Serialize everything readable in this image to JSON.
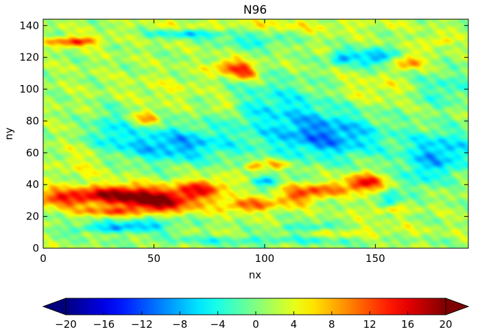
{
  "chart_data": {
    "type": "heatmap",
    "title": "N96",
    "xlabel": "nx",
    "ylabel": "ny",
    "xlim": [
      0,
      192
    ],
    "ylim": [
      0,
      144
    ],
    "x_ticks": [
      0,
      50,
      100,
      150
    ],
    "y_ticks": [
      0,
      20,
      40,
      60,
      80,
      100,
      120,
      140
    ],
    "colormap": "jet",
    "colorbar": {
      "orientation": "horizontal",
      "location": "bottom",
      "extend": "both",
      "vmin": -20,
      "vmax": 20,
      "ticks": [
        -20,
        -16,
        -12,
        -8,
        -4,
        0,
        4,
        8,
        12,
        16,
        20
      ]
    },
    "grid": false,
    "features": [
      {
        "kind": "warm-core",
        "x": 52,
        "y": 30,
        "sx": 13,
        "sy": 5,
        "amp": 18
      },
      {
        "kind": "warm-band",
        "x": 12,
        "y": 32,
        "sx": 14,
        "sy": 4,
        "amp": 13
      },
      {
        "kind": "warm-band",
        "x": 72,
        "y": 38,
        "sx": 8,
        "sy": 4,
        "amp": 11
      },
      {
        "kind": "warm-band",
        "x": 35,
        "y": 35,
        "sx": 10,
        "sy": 4,
        "amp": 10
      },
      {
        "kind": "warm-band",
        "x": 93,
        "y": 27,
        "sx": 9,
        "sy": 3,
        "amp": 10
      },
      {
        "kind": "warm-band",
        "x": 115,
        "y": 33,
        "sx": 7,
        "sy": 4,
        "amp": 9
      },
      {
        "kind": "warm-core",
        "x": 145,
        "y": 41,
        "sx": 6,
        "sy": 4,
        "amp": 14
      },
      {
        "kind": "warm-band",
        "x": 127,
        "y": 37,
        "sx": 8,
        "sy": 3,
        "amp": 8
      },
      {
        "kind": "warm-band",
        "x": 30,
        "y": 23,
        "sx": 12,
        "sy": 2,
        "amp": 8
      },
      {
        "kind": "warm-patch",
        "x": 14,
        "y": 130,
        "sx": 8,
        "sy": 2,
        "amp": 13
      },
      {
        "kind": "warm-patch",
        "x": 85,
        "y": 114,
        "sx": 6,
        "sy": 3,
        "amp": 11
      },
      {
        "kind": "warm-patch",
        "x": 91,
        "y": 110,
        "sx": 4,
        "sy": 3,
        "amp": 10
      },
      {
        "kind": "warm-patch",
        "x": 165,
        "y": 117,
        "sx": 5,
        "sy": 3,
        "amp": 9
      },
      {
        "kind": "warm-patch",
        "x": 95,
        "y": 51,
        "sx": 3,
        "sy": 2,
        "amp": 9
      },
      {
        "kind": "warm-patch",
        "x": 106,
        "y": 53,
        "sx": 4,
        "sy": 2,
        "amp": 7
      },
      {
        "kind": "warm-patch",
        "x": 47,
        "y": 82,
        "sx": 4,
        "sy": 3,
        "amp": 8
      },
      {
        "kind": "warm-patch",
        "x": 178,
        "y": 130,
        "sx": 5,
        "sy": 2,
        "amp": 6
      },
      {
        "kind": "warm-patch",
        "x": 155,
        "y": 24,
        "sx": 7,
        "sy": 2,
        "amp": 6
      },
      {
        "kind": "warm-patch",
        "x": 82,
        "y": 90,
        "sx": 5,
        "sy": 3,
        "amp": 5
      },
      {
        "kind": "cold-band",
        "x": 58,
        "y": 65,
        "sx": 20,
        "sy": 8,
        "amp": -10
      },
      {
        "kind": "cold-band",
        "x": 128,
        "y": 70,
        "sx": 18,
        "sy": 10,
        "amp": -11
      },
      {
        "kind": "cold-band",
        "x": 180,
        "y": 60,
        "sx": 12,
        "sy": 10,
        "amp": -9
      },
      {
        "kind": "cold-band",
        "x": 68,
        "y": 135,
        "sx": 14,
        "sy": 2,
        "amp": -8
      },
      {
        "kind": "cold-core",
        "x": 150,
        "y": 120,
        "sx": 6,
        "sy": 4,
        "amp": -11
      },
      {
        "kind": "cold-core",
        "x": 135,
        "y": 120,
        "sx": 4,
        "sy": 3,
        "amp": -10
      },
      {
        "kind": "cold-band",
        "x": 105,
        "y": 90,
        "sx": 18,
        "sy": 12,
        "amp": -6
      },
      {
        "kind": "cold-band",
        "x": 96,
        "y": 130,
        "sx": 10,
        "sy": 3,
        "amp": -6
      },
      {
        "kind": "cold-core",
        "x": 101,
        "y": 42,
        "sx": 4,
        "sy": 2,
        "amp": -11
      },
      {
        "kind": "cold-band",
        "x": 45,
        "y": 15,
        "sx": 12,
        "sy": 3,
        "amp": -8
      },
      {
        "kind": "cold-band",
        "x": 25,
        "y": 12,
        "sx": 12,
        "sy": 2,
        "amp": -6
      },
      {
        "kind": "cold-band",
        "x": 120,
        "y": 13,
        "sx": 10,
        "sy": 2,
        "amp": -7
      },
      {
        "kind": "cold-band",
        "x": 156,
        "y": 30,
        "sx": 3,
        "sy": 4,
        "amp": -9
      },
      {
        "kind": "cold-band",
        "x": 180,
        "y": 100,
        "sx": 10,
        "sy": 8,
        "amp": -5
      },
      {
        "kind": "cold-band",
        "x": 30,
        "y": 75,
        "sx": 6,
        "sy": 10,
        "amp": -5
      },
      {
        "kind": "cold-band",
        "x": 100,
        "y": 5,
        "sx": 40,
        "sy": 2,
        "amp": -5
      },
      {
        "kind": "cold-band",
        "x": 170,
        "y": 45,
        "sx": 6,
        "sy": 8,
        "amp": -4
      },
      {
        "kind": "warm-band",
        "x": 150,
        "y": 100,
        "sx": 14,
        "sy": 6,
        "amp": 3
      },
      {
        "kind": "warm-band",
        "x": 20,
        "y": 55,
        "sx": 10,
        "sy": 8,
        "amp": 3
      },
      {
        "kind": "warm-band",
        "x": 140,
        "y": 10,
        "sx": 20,
        "sy": 3,
        "amp": 3
      },
      {
        "kind": "warm-band",
        "x": 60,
        "y": 100,
        "sx": 18,
        "sy": 6,
        "amp": 2
      },
      {
        "kind": "warm-band",
        "x": 100,
        "y": 140,
        "sx": 40,
        "sy": 3,
        "amp": 3
      }
    ]
  }
}
